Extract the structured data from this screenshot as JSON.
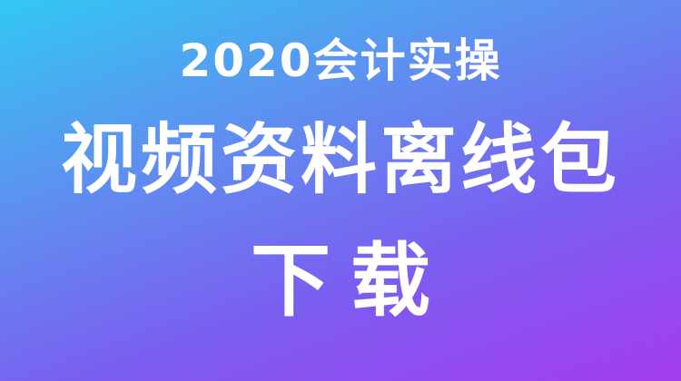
{
  "banner": {
    "line1": "2020会计实操",
    "line2": "视频资料离线包",
    "line3": "下载"
  },
  "colors": {
    "gradient_start": "#33c8f2",
    "gradient_mid": "#7a5ff0",
    "gradient_end": "#a43cf0",
    "text": "#ffffff"
  }
}
